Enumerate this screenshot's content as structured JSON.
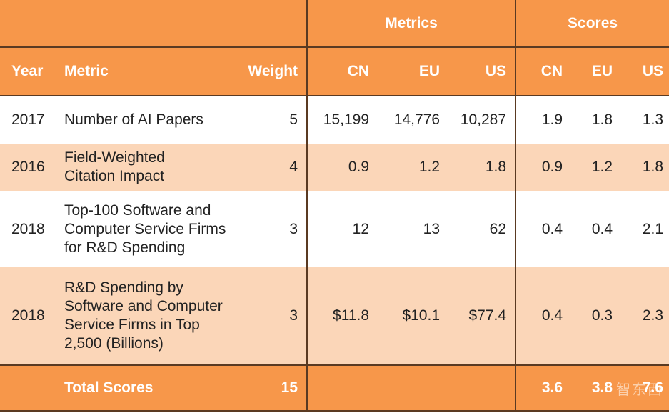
{
  "groups": {
    "metrics": "Metrics",
    "scores": "Scores"
  },
  "columns": {
    "year": "Year",
    "metric": "Metric",
    "weight": "Weight",
    "m_cn": "CN",
    "m_eu": "EU",
    "m_us": "US",
    "s_cn": "CN",
    "s_eu": "EU",
    "s_us": "US"
  },
  "rows": [
    {
      "year": "2017",
      "metric": "Number of AI Papers",
      "weight": "5",
      "m_cn": "15,199",
      "m_eu": "14,776",
      "m_us": "10,287",
      "s_cn": "1.9",
      "s_eu": "1.8",
      "s_us": "1.3"
    },
    {
      "year": "2016",
      "metric": "Field-Weighted\nCitation Impact",
      "weight": "4",
      "m_cn": "0.9",
      "m_eu": "1.2",
      "m_us": "1.8",
      "s_cn": "0.9",
      "s_eu": "1.2",
      "s_us": "1.8"
    },
    {
      "year": "2018",
      "metric": "Top-100 Software and\nComputer Service Firms\nfor R&D Spending",
      "weight": "3",
      "m_cn": "12",
      "m_eu": "13",
      "m_us": "62",
      "s_cn": "0.4",
      "s_eu": "0.4",
      "s_us": "2.1"
    },
    {
      "year": "2018",
      "metric": "R&D Spending by\nSoftware and Computer\nService Firms in Top\n2,500 (Billions)",
      "weight": "3",
      "m_cn": "$11.8",
      "m_eu": "$10.1",
      "m_us": "$77.4",
      "s_cn": "0.4",
      "s_eu": "0.3",
      "s_us": "2.3"
    }
  ],
  "total": {
    "label": "Total Scores",
    "weight": "15",
    "s_cn": "3.6",
    "s_eu": "3.8",
    "s_us": "7.6"
  },
  "watermark": "智东西",
  "colors": {
    "header": "#f7974a",
    "band": "#fbd6b8",
    "rule": "#5a3a22"
  }
}
